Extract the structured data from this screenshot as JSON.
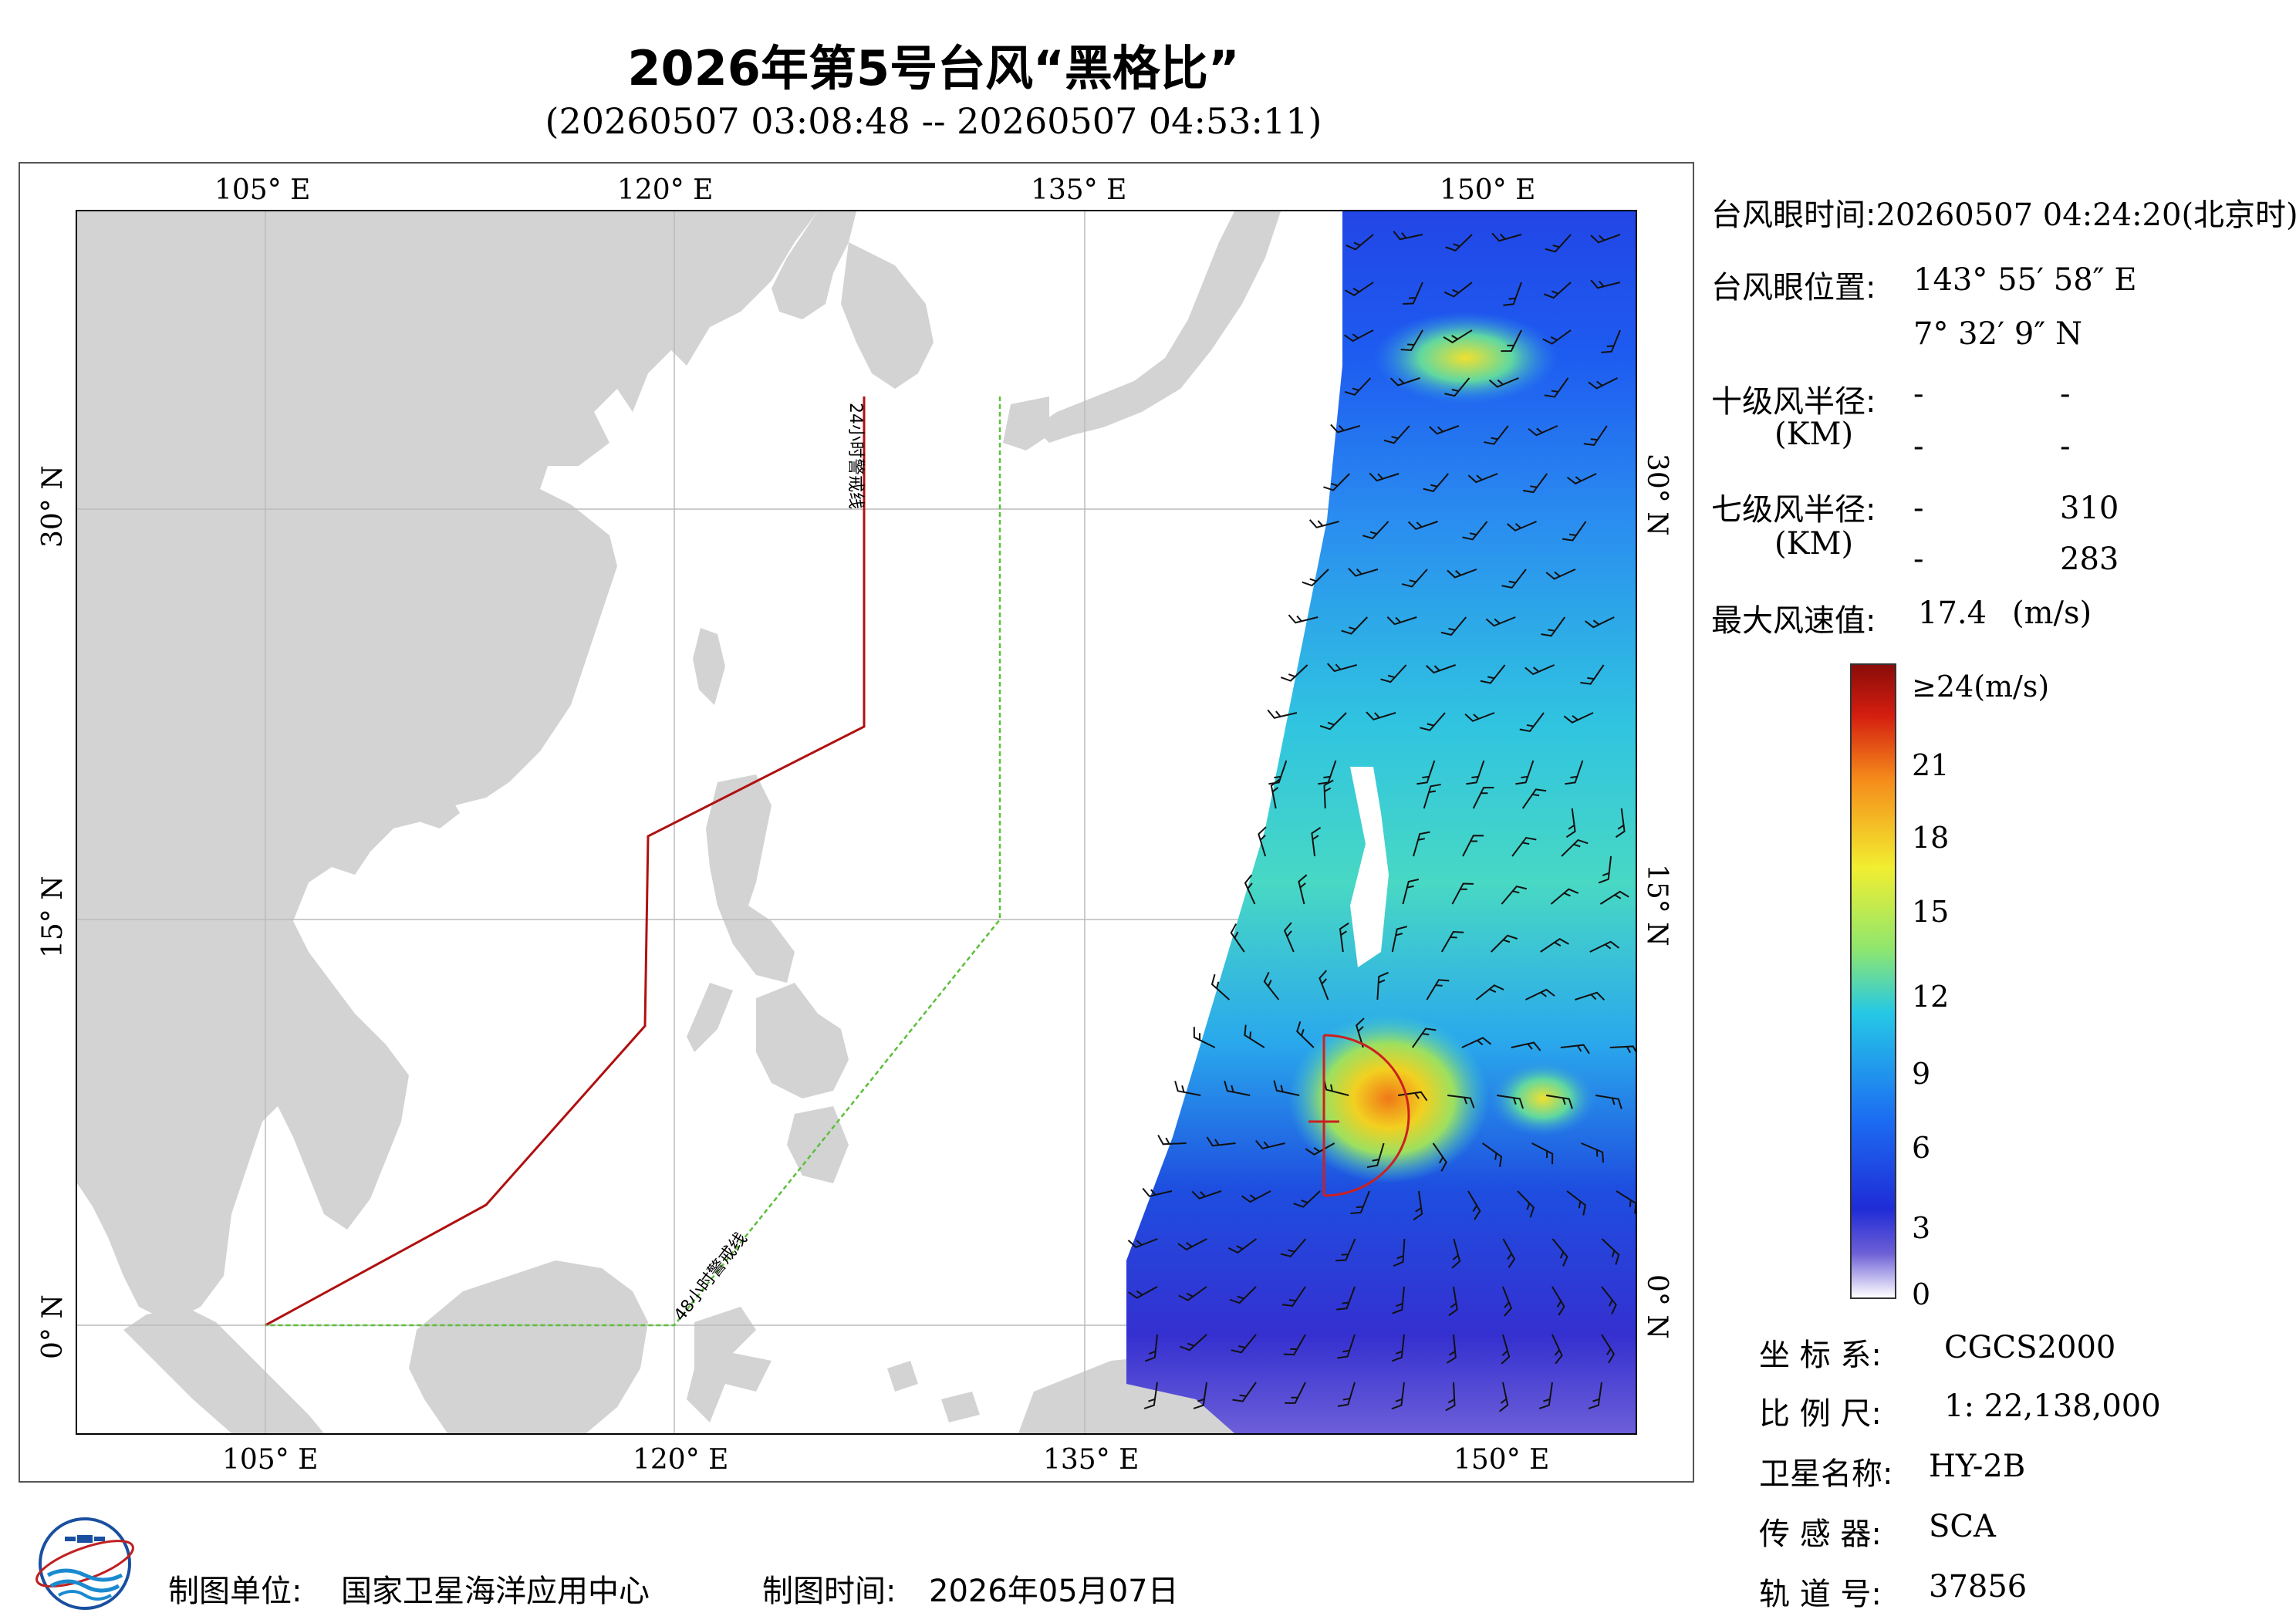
{
  "title": "2026年第5号台风“黑格比”",
  "subtitle": "(20260507 03:08:48 -- 20260507 04:53:11)",
  "map": {
    "lon_labels_top": [
      "105° E",
      "120° E",
      "135° E",
      "150° E"
    ],
    "lon_labels_bottom": [
      "105° E",
      "120° E",
      "135° E",
      "150° E"
    ],
    "lat_labels_left": [
      "30° N",
      "15° N",
      "0° N"
    ],
    "lat_labels_right": [
      "30° N",
      "15° N",
      "0° N"
    ],
    "line_24h_label": "24小时警戒线",
    "line_48h_label": "48小时警戒线",
    "colors": {
      "land": "#d3d3d3",
      "line_24h": "#b01010",
      "line_48h": "#5cbf3a",
      "typhoon_mark": "#cc2020"
    }
  },
  "info": {
    "eye_time_label": "台风眼时间:",
    "eye_time_value": "20260507 04:24:20(北京时)",
    "eye_pos_label": "台风眼位置:",
    "eye_lon": "143° 55′ 58″ E",
    "eye_lat": "7° 32′ 9″ N",
    "r10_label": "十级风半径:",
    "r10_unit": "(KM)",
    "r10_row1": [
      "-",
      "-"
    ],
    "r10_row2": [
      "-",
      "-"
    ],
    "r7_label": "七级风半径:",
    "r7_unit": "(KM)",
    "r7_row1": [
      "-",
      "310"
    ],
    "r7_row2": [
      "-",
      "283"
    ],
    "max_wind_label": "最大风速值:",
    "max_wind_value": "17.4",
    "max_wind_unit": "(m/s)"
  },
  "colorbar": {
    "labels": [
      "≥24(m/s)",
      "21",
      "18",
      "15",
      "12",
      "9",
      "6",
      "3",
      "0"
    ],
    "min": 0,
    "max": 24
  },
  "meta": {
    "crs_label": "坐 标 系:",
    "crs_value": "CGCS2000",
    "scale_label": "比 例 尺:",
    "scale_value": "1: 22,138,000",
    "satellite_label": "卫星名称:",
    "satellite_value": "HY-2B",
    "sensor_label": "传 感 器:",
    "sensor_value": "SCA",
    "orbit_label": "轨 道 号:",
    "orbit_value": "37856"
  },
  "footer": {
    "maker_label": "制图单位:",
    "maker_value": "国家卫星海洋应用中心",
    "time_label": "制图时间:",
    "time_value": "2026年05月07日",
    "logo_icon": "nsoas-logo-icon"
  }
}
